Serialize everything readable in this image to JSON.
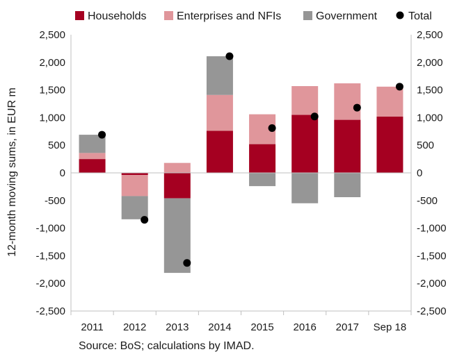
{
  "chart_data": {
    "type": "bar",
    "stacked": true,
    "categories": [
      "2011",
      "2012",
      "2013",
      "2014",
      "2015",
      "2016",
      "2017",
      "Sep 18"
    ],
    "series": [
      {
        "name": "Households",
        "color": "#a50021",
        "values": [
          250,
          -40,
          -460,
          760,
          520,
          1050,
          960,
          1020
        ]
      },
      {
        "name": "Enterprises and NFIs",
        "color": "#e0969b",
        "values": [
          110,
          -380,
          180,
          650,
          540,
          520,
          660,
          540
        ]
      },
      {
        "name": "Government",
        "color": "#969696",
        "values": [
          330,
          -420,
          -1350,
          700,
          -240,
          -550,
          -440,
          0
        ]
      }
    ],
    "total": {
      "name": "Total",
      "color": "#000000",
      "values": [
        690,
        -850,
        -1630,
        2110,
        810,
        1020,
        1180,
        1560
      ]
    },
    "ylabel": "12-month moving sums, in EUR m",
    "ylim": [
      -2500,
      2500
    ],
    "ytick_step": 500,
    "grid": false,
    "secondary_y_axis": true,
    "legend_position": "top"
  },
  "source": "Source: BoS; calculations by IMAD."
}
